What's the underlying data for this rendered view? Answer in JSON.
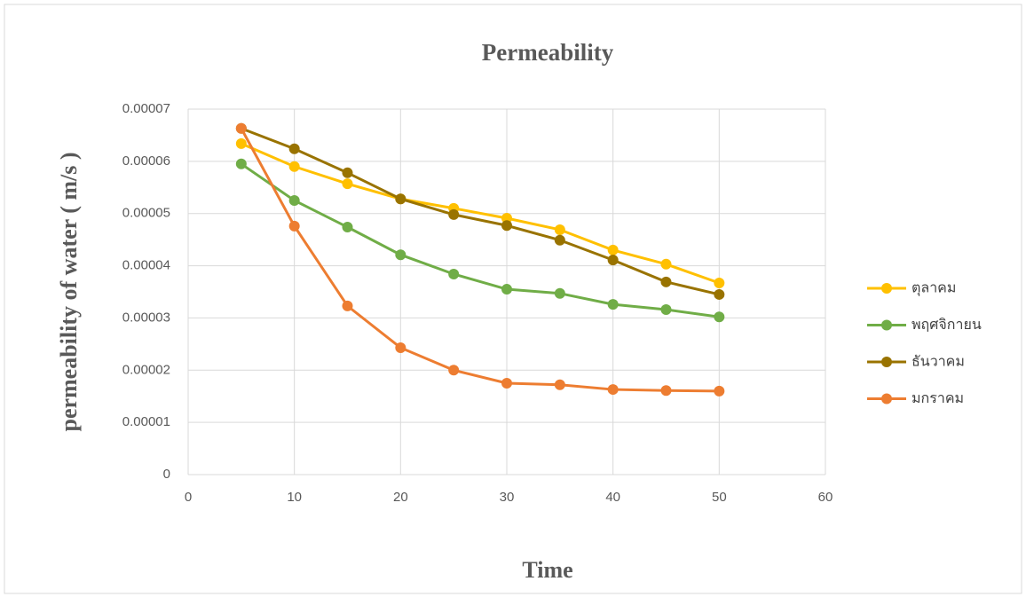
{
  "chart_data": {
    "type": "line",
    "title": "Permeability",
    "x_label": "Time",
    "y_label": "permeability of water ( m/s )",
    "x": [
      5,
      10,
      15,
      20,
      25,
      30,
      35,
      40,
      45,
      50
    ],
    "series": [
      {
        "name": "ตุลาคม",
        "color": "#FFC000",
        "values": [
          6.34e-05,
          5.9e-05,
          5.57e-05,
          5.28e-05,
          5.1e-05,
          4.91e-05,
          4.69e-05,
          4.3e-05,
          4.03e-05,
          3.67e-05
        ]
      },
      {
        "name": "พฤศจิกายน",
        "color": "#70AD47",
        "values": [
          5.95e-05,
          5.25e-05,
          4.74e-05,
          4.21e-05,
          3.84e-05,
          3.55e-05,
          3.47e-05,
          3.26e-05,
          3.16e-05,
          3.02e-05
        ]
      },
      {
        "name": "ธันวาคม",
        "color": "#997300",
        "values": [
          6.63e-05,
          6.24e-05,
          5.78e-05,
          5.28e-05,
          4.98e-05,
          4.77e-05,
          4.49e-05,
          4.11e-05,
          3.69e-05,
          3.45e-05
        ]
      },
      {
        "name": "มกราคม",
        "color": "#ED7D31",
        "values": [
          6.63e-05,
          4.76e-05,
          3.23e-05,
          2.43e-05,
          2e-05,
          1.75e-05,
          1.72e-05,
          1.63e-05,
          1.61e-05,
          1.6e-05
        ]
      }
    ],
    "xlim": [
      0,
      60
    ],
    "xticks": [
      0,
      10,
      20,
      30,
      40,
      50,
      60
    ],
    "ylim": [
      0,
      7e-05
    ],
    "yticks": [
      0,
      1e-05,
      2e-05,
      3e-05,
      4e-05,
      5e-05,
      6e-05,
      7e-05
    ],
    "grid": true,
    "legend": "right"
  }
}
